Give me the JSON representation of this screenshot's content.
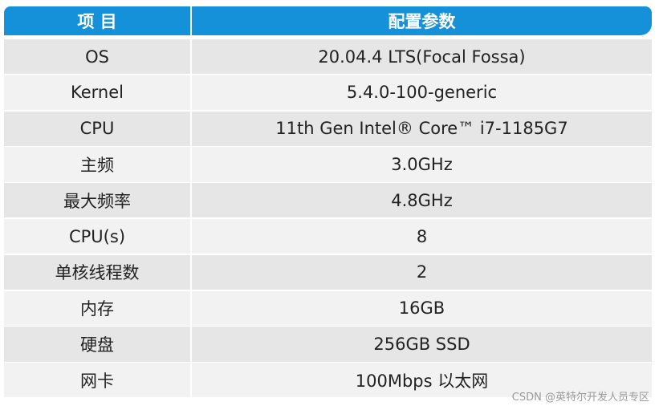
{
  "table": {
    "header": [
      "项 目",
      "配置参数"
    ],
    "rows": [
      [
        "OS",
        "20.04.4 LTS(Focal Fossa)"
      ],
      [
        "Kernel",
        "5.4.0-100-generic"
      ],
      [
        "CPU",
        "11th Gen Intel® Core™ i7-1185G7"
      ],
      [
        "主频",
        "3.0GHz"
      ],
      [
        "最大频率",
        "4.8GHz"
      ],
      [
        "CPU(s)",
        "8"
      ],
      [
        "单核线程数",
        "2"
      ],
      [
        "内存",
        "16GB"
      ],
      [
        "硬盘",
        "256GB SSD"
      ],
      [
        "网卡",
        "100Mbps 以太网"
      ]
    ]
  },
  "watermark": "CSDN @英特尔开发人员专区"
}
